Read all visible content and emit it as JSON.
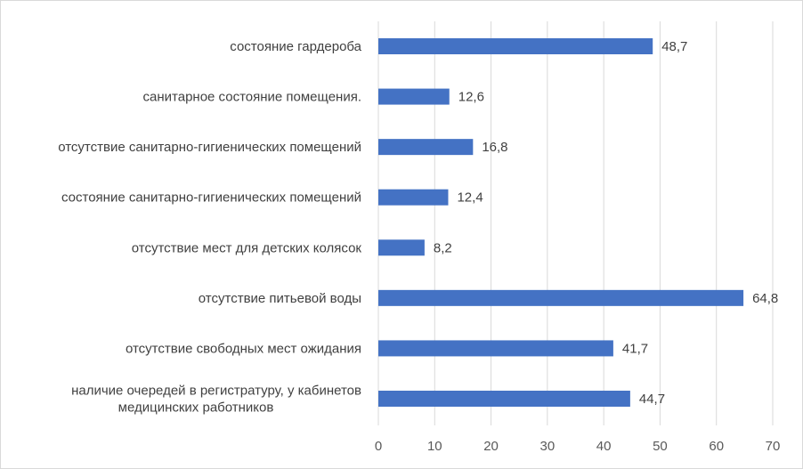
{
  "chart_data": {
    "type": "bar",
    "orientation": "horizontal",
    "categories": [
      [
        "состояние гардероба"
      ],
      [
        "санитарное состояние помещения."
      ],
      [
        "отсутствие санитарно-гигиенических помещений"
      ],
      [
        "состояние санитарно-гигиенических помещений"
      ],
      [
        "отсутствие мест для детских колясок"
      ],
      [
        "отсутствие питьевой воды"
      ],
      [
        "отсутствие свободных мест ожидания"
      ],
      [
        "наличие очередей в регистратуру, у кабинетов",
        "медицинских работников"
      ]
    ],
    "values": [
      48.7,
      12.6,
      16.8,
      12.4,
      8.2,
      64.8,
      41.7,
      44.7
    ],
    "value_labels": [
      "48,7",
      "12,6",
      "16,8",
      "12,4",
      "8,2",
      "64,8",
      "41,7",
      "44,7"
    ],
    "xlim": [
      0,
      70
    ],
    "xticks": [
      0,
      10,
      20,
      30,
      40,
      50,
      60,
      70
    ],
    "grid": true,
    "bar_color": "#4472C4",
    "grid_color": "#d9d9d9",
    "title": "",
    "xlabel": "",
    "ylabel": ""
  }
}
